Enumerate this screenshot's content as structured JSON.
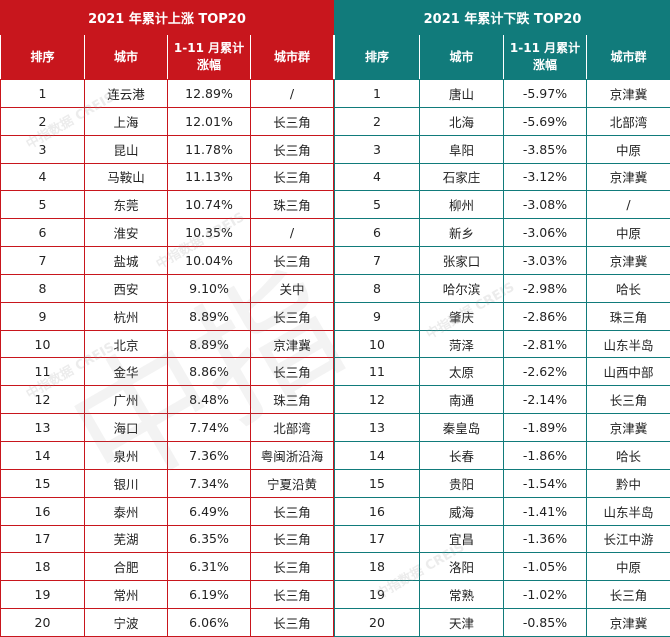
{
  "left": {
    "title": "2021 年累计上涨 TOP20",
    "headers": [
      "排序",
      "城市",
      "1-11 月累计涨幅",
      "城市群"
    ],
    "rows": [
      [
        "1",
        "连云港",
        "12.89%",
        "/"
      ],
      [
        "2",
        "上海",
        "12.01%",
        "长三角"
      ],
      [
        "3",
        "昆山",
        "11.78%",
        "长三角"
      ],
      [
        "4",
        "马鞍山",
        "11.13%",
        "长三角"
      ],
      [
        "5",
        "东莞",
        "10.74%",
        "珠三角"
      ],
      [
        "6",
        "淮安",
        "10.35%",
        "/"
      ],
      [
        "7",
        "盐城",
        "10.04%",
        "长三角"
      ],
      [
        "8",
        "西安",
        "9.10%",
        "关中"
      ],
      [
        "9",
        "杭州",
        "8.89%",
        "长三角"
      ],
      [
        "10",
        "北京",
        "8.89%",
        "京津冀"
      ],
      [
        "11",
        "金华",
        "8.86%",
        "长三角"
      ],
      [
        "12",
        "广州",
        "8.48%",
        "珠三角"
      ],
      [
        "13",
        "海口",
        "7.74%",
        "北部湾"
      ],
      [
        "14",
        "泉州",
        "7.36%",
        "粤闽浙沿海"
      ],
      [
        "15",
        "银川",
        "7.34%",
        "宁夏沿黄"
      ],
      [
        "16",
        "泰州",
        "6.49%",
        "长三角"
      ],
      [
        "17",
        "芜湖",
        "6.35%",
        "长三角"
      ],
      [
        "18",
        "合肥",
        "6.31%",
        "长三角"
      ],
      [
        "19",
        "常州",
        "6.19%",
        "长三角"
      ],
      [
        "20",
        "宁波",
        "6.06%",
        "长三角"
      ]
    ]
  },
  "right": {
    "title": "2021 年累计下跌 TOP20",
    "headers": [
      "排序",
      "城市",
      "1-11 月累计涨幅",
      "城市群"
    ],
    "rows": [
      [
        "1",
        "唐山",
        "-5.97%",
        "京津冀"
      ],
      [
        "2",
        "北海",
        "-5.69%",
        "北部湾"
      ],
      [
        "3",
        "阜阳",
        "-3.85%",
        "中原"
      ],
      [
        "4",
        "石家庄",
        "-3.12%",
        "京津冀"
      ],
      [
        "5",
        "柳州",
        "-3.08%",
        "/"
      ],
      [
        "6",
        "新乡",
        "-3.06%",
        "中原"
      ],
      [
        "7",
        "张家口",
        "-3.03%",
        "京津冀"
      ],
      [
        "8",
        "哈尔滨",
        "-2.98%",
        "哈长"
      ],
      [
        "9",
        "肇庆",
        "-2.86%",
        "珠三角"
      ],
      [
        "10",
        "菏泽",
        "-2.81%",
        "山东半岛"
      ],
      [
        "11",
        "太原",
        "-2.62%",
        "山西中部"
      ],
      [
        "12",
        "南通",
        "-2.14%",
        "长三角"
      ],
      [
        "13",
        "秦皇岛",
        "-1.89%",
        "京津冀"
      ],
      [
        "14",
        "长春",
        "-1.86%",
        "哈长"
      ],
      [
        "15",
        "贵阳",
        "-1.54%",
        "黔中"
      ],
      [
        "16",
        "威海",
        "-1.41%",
        "山东半岛"
      ],
      [
        "17",
        "宜昌",
        "-1.36%",
        "长江中游"
      ],
      [
        "18",
        "洛阳",
        "-1.05%",
        "中原"
      ],
      [
        "19",
        "常熟",
        "-1.02%",
        "长三角"
      ],
      [
        "20",
        "天津",
        "-0.85%",
        "京津冀"
      ]
    ]
  },
  "watermark": "中指数据 CREIS"
}
